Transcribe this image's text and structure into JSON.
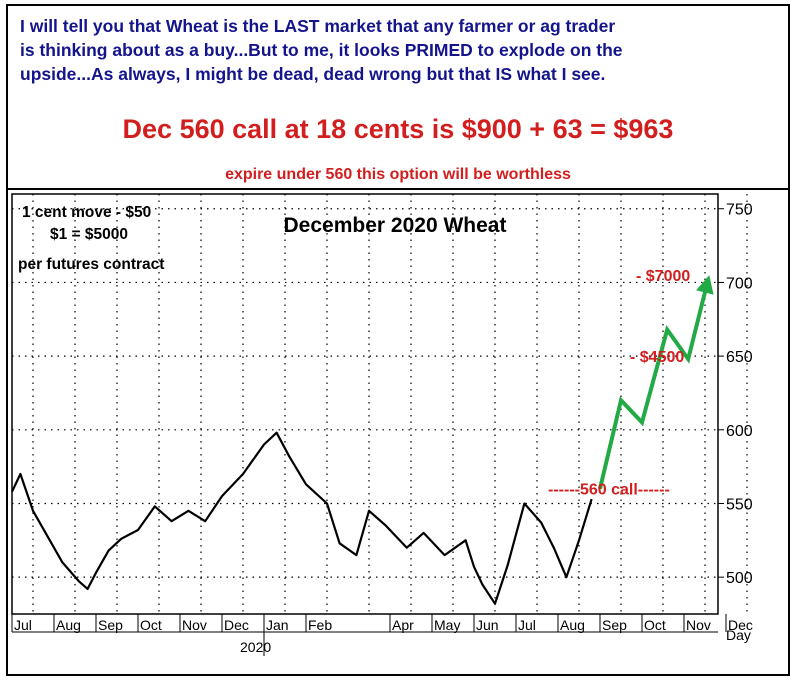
{
  "commentary": {
    "line1": "I will tell you that Wheat is the LAST market that any farmer or ag trader",
    "line2": "is thinking about as a buy...But to me, it looks PRIMED to explode on the",
    "line3": "upside...As always, I might be dead, dead wrong but that IS what I see.",
    "headline": "Dec 560 call at 18 cents is $900 + 63 = $963",
    "subline": "expire under 560 this option will be worthless"
  },
  "notes": {
    "line1": "1 cent move - $50",
    "line2": "$1 = $5000",
    "line3": "per futures contract"
  },
  "colors": {
    "commentary": "#14148c",
    "headline": "#d21e1e",
    "projection": "#22aa44",
    "annotation": "#d21e1e"
  },
  "chart_data": {
    "type": "line",
    "title": "December 2020 Wheat",
    "ylim": [
      475,
      760
    ],
    "yticks": [
      500,
      550,
      600,
      650,
      700,
      750
    ],
    "ytick_labels": [
      "500",
      "550",
      "600",
      "650",
      "700",
      "750"
    ],
    "xlabel_right": "Day",
    "year_label": "2020",
    "month_labels": [
      "Jul",
      "Aug",
      "Sep",
      "Oct",
      "Nov",
      "Dec",
      "Jan",
      "Feb",
      "Apr",
      "May",
      "Jun",
      "Jul",
      "Aug",
      "Sep",
      "Oct",
      "Nov",
      "Dec"
    ],
    "month_index": [
      0,
      1,
      2,
      3,
      4,
      5,
      6,
      7,
      9,
      10,
      11,
      12,
      13,
      14,
      15,
      16,
      17
    ],
    "grid": true,
    "price_series": {
      "name": "",
      "t": [
        0,
        0.2,
        0.5,
        0.8,
        1.2,
        1.6,
        1.8,
        2.0,
        2.3,
        2.6,
        3.0,
        3.4,
        3.8,
        4.2,
        4.6,
        5.0,
        5.5,
        6.0,
        6.3,
        6.6,
        7.0,
        7.5,
        7.8,
        8.2,
        8.5,
        8.9,
        9.4,
        9.8,
        10.3,
        10.8,
        11.0,
        11.2,
        11.5,
        11.8,
        12.2,
        12.6,
        12.9,
        13.2,
        13.5,
        13.8
      ],
      "price": [
        558,
        570,
        545,
        530,
        510,
        497,
        492,
        503,
        518,
        526,
        532,
        548,
        538,
        545,
        538,
        555,
        570,
        590,
        598,
        582,
        563,
        550,
        523,
        515,
        545,
        535,
        520,
        530,
        515,
        525,
        507,
        495,
        482,
        508,
        550,
        537,
        520,
        500,
        525,
        553
      ]
    },
    "projection": {
      "t": [
        14.0,
        14.5,
        15.0,
        15.6,
        16.1,
        16.6
      ],
      "price": [
        560,
        620,
        605,
        668,
        648,
        705
      ]
    },
    "annotations": [
      {
        "label": "------560 call------",
        "price": 560
      },
      {
        "label": "- $4500",
        "price": 650
      },
      {
        "label": "- $7000",
        "price": 705
      }
    ]
  }
}
